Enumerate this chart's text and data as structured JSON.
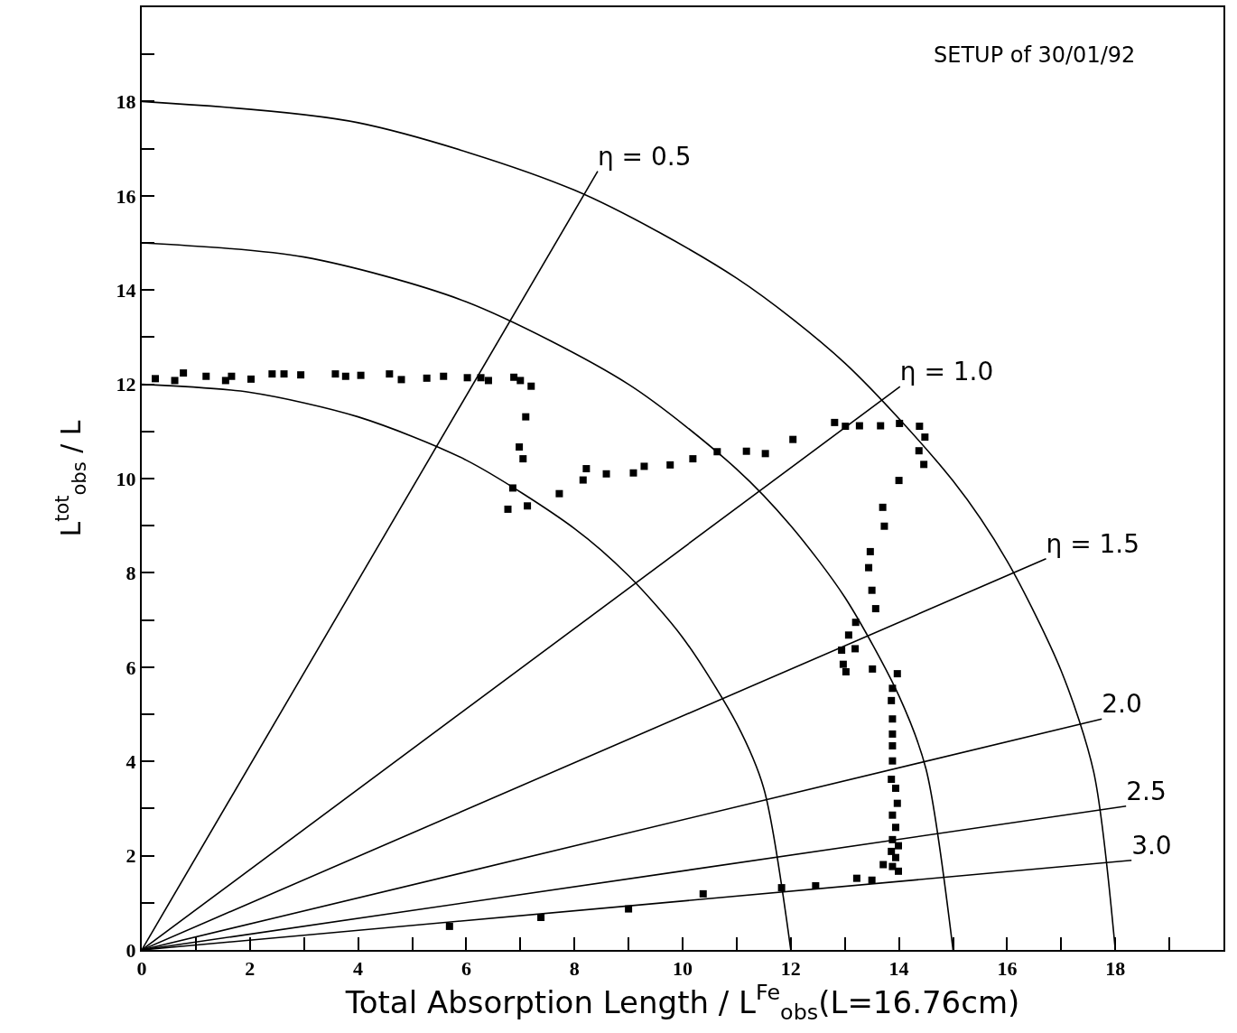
{
  "chart_data": {
    "type": "scatter",
    "xlabel": "Total Absorption Length / L$^{Fe}$$_{obs}$(L=16.76cm)",
    "ylabel": "L$^{tot}$$_{obs}$ / L",
    "annotations": [
      "SETUP of 30/01/92"
    ],
    "xlim": [
      0,
      20
    ],
    "ylim": [
      0,
      20
    ],
    "xticks": [
      0,
      {
        "value": 1,
        "label": null
      },
      2,
      {
        "value": 3,
        "label": null
      },
      4,
      {
        "value": 5,
        "label": null
      },
      6,
      {
        "value": 7,
        "label": null
      },
      8,
      {
        "value": 9,
        "label": null
      },
      10,
      {
        "value": 11,
        "label": null
      },
      12,
      {
        "value": 13,
        "label": null
      },
      14,
      {
        "value": 15,
        "label": null
      },
      16,
      {
        "value": 17,
        "label": null
      },
      18,
      {
        "value": 19,
        "label": null
      }
    ],
    "yticks": [
      0,
      {
        "value": 1,
        "label": null
      },
      2,
      {
        "value": 3,
        "label": null
      },
      4,
      {
        "value": 5,
        "label": null
      },
      6,
      {
        "value": 7,
        "label": null
      },
      8,
      {
        "value": 9,
        "label": null
      },
      10,
      {
        "value": 11,
        "label": null
      },
      12,
      {
        "value": 13,
        "label": null
      },
      14,
      {
        "value": 15,
        "label": null
      },
      16,
      {
        "value": 17,
        "label": null
      },
      18,
      {
        "value": 19,
        "label": null
      }
    ],
    "grid": false,
    "legend": false,
    "line_style": "solid",
    "series": [
      {
        "color": "#000000",
        "marker": "square",
        "x": [
          0.25,
          0.61,
          0.77,
          1.19,
          1.55,
          1.66,
          2.02,
          2.41,
          2.63,
          2.94,
          3.58,
          3.77,
          4.05,
          4.58,
          4.8,
          5.27,
          5.58,
          6.02,
          6.27,
          6.41,
          6.88,
          7.0,
          7.2,
          7.1,
          6.98,
          7.05,
          6.86,
          6.77,
          7.13,
          7.72,
          8.16,
          8.22,
          8.59,
          9.09,
          9.29,
          9.77,
          10.19,
          10.64,
          11.18,
          11.53,
          12.04,
          12.81,
          13.01,
          13.27,
          13.66,
          14.01,
          14.38,
          14.48,
          14.37,
          14.46,
          14.0,
          13.7,
          13.73,
          13.47,
          13.44,
          13.5,
          13.57,
          13.2,
          13.07,
          12.94,
          13.19,
          12.97,
          13.02,
          13.51,
          13.97,
          13.88,
          13.86,
          13.88,
          13.88,
          13.88,
          13.88,
          13.86,
          13.94,
          13.97,
          13.88,
          13.94,
          13.88,
          13.99,
          13.86,
          13.94,
          13.88,
          13.99,
          13.71,
          13.5,
          13.22,
          12.46,
          11.83,
          10.38,
          9.0,
          7.38,
          5.69
        ],
        "values": [
          12.12,
          12.08,
          12.24,
          12.17,
          12.08,
          12.17,
          12.11,
          12.22,
          12.22,
          12.2,
          12.22,
          12.17,
          12.19,
          12.22,
          12.1,
          12.13,
          12.17,
          12.14,
          12.14,
          12.08,
          12.15,
          12.08,
          11.96,
          11.31,
          10.67,
          10.42,
          9.8,
          9.35,
          9.42,
          9.68,
          9.97,
          10.21,
          10.1,
          10.12,
          10.26,
          10.29,
          10.42,
          10.57,
          10.58,
          10.53,
          10.83,
          11.19,
          11.11,
          11.12,
          11.12,
          11.17,
          11.11,
          10.88,
          10.59,
          10.3,
          9.96,
          9.39,
          8.99,
          8.45,
          8.11,
          7.63,
          7.24,
          6.95,
          6.68,
          6.36,
          6.39,
          6.06,
          5.9,
          5.96,
          5.86,
          5.55,
          5.29,
          4.9,
          4.58,
          4.33,
          4.01,
          3.62,
          3.43,
          3.11,
          2.86,
          2.6,
          2.34,
          2.21,
          2.09,
          1.96,
          1.77,
          1.67,
          1.81,
          1.48,
          1.52,
          1.36,
          1.32,
          1.19,
          0.87,
          0.69,
          0.5
        ]
      },
      {
        "type": "line",
        "color": "#000000",
        "x": [
          0,
          2,
          4,
          6,
          8,
          9,
          10,
          11,
          11.5,
          12
        ],
        "values": [
          12,
          11.83,
          11.31,
          10.39,
          8.94,
          7.94,
          6.63,
          4.8,
          3.43,
          0
        ]
      },
      {
        "type": "line",
        "color": "#000000",
        "x": [
          0,
          3,
          6,
          9,
          11,
          12,
          13,
          14,
          14.5,
          15
        ],
        "values": [
          15,
          14.7,
          13.75,
          12,
          10.2,
          9,
          7.48,
          5.39,
          3.84,
          0
        ]
      },
      {
        "type": "line",
        "color": "#000000",
        "x": [
          0,
          4,
          8,
          11,
          13,
          15,
          16,
          17,
          17.6,
          18
        ],
        "values": [
          18,
          17.55,
          16.12,
          14.25,
          12.45,
          9.95,
          8.25,
          5.92,
          3.78,
          0
        ]
      },
      {
        "type": "line",
        "name": "η = 0.5",
        "color": "#000000",
        "x": [
          0,
          8.43
        ],
        "values": [
          0,
          16.52
        ]
      },
      {
        "type": "line",
        "name": "η = 1.0",
        "color": "#000000",
        "x": [
          0,
          14.02
        ],
        "values": [
          0,
          11.95
        ]
      },
      {
        "type": "line",
        "name": "η = 1.5",
        "color": "#000000",
        "x": [
          0,
          16.72
        ],
        "values": [
          0,
          8.3
        ]
      },
      {
        "type": "line",
        "name": "2.0",
        "color": "#000000",
        "x": [
          0,
          17.75
        ],
        "values": [
          0,
          4.9
        ]
      },
      {
        "type": "line",
        "name": "2.5",
        "color": "#000000",
        "x": [
          0,
          18.2
        ],
        "values": [
          0,
          3.05
        ]
      },
      {
        "type": "line",
        "name": "3.0",
        "color": "#000000",
        "x": [
          0,
          18.3
        ],
        "values": [
          0,
          1.9
        ]
      }
    ]
  }
}
